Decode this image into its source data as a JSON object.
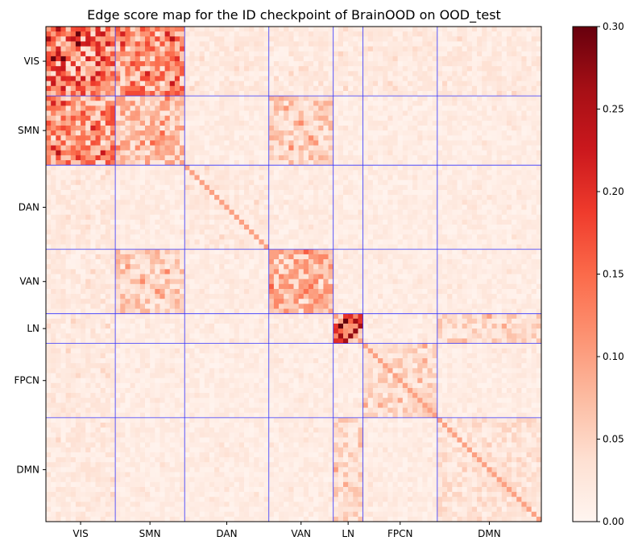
{
  "chart_data": {
    "type": "heatmap",
    "title": "Edge score map for the ID checkpoint of BrainOOD on OOD_test",
    "n_rois": 100,
    "networks": [
      {
        "name": "VIS",
        "start": 0,
        "end": 14
      },
      {
        "name": "SMN",
        "start": 14,
        "end": 28
      },
      {
        "name": "DAN",
        "start": 28,
        "end": 45
      },
      {
        "name": "VAN",
        "start": 45,
        "end": 58
      },
      {
        "name": "LN",
        "start": 58,
        "end": 64
      },
      {
        "name": "FPCN",
        "start": 64,
        "end": 79
      },
      {
        "name": "DMN",
        "start": 79,
        "end": 100
      }
    ],
    "value_range": [
      0.0,
      0.3
    ],
    "colormap": "Reds",
    "colorbar_ticks": [
      "0.00",
      "0.05",
      "0.10",
      "0.15",
      "0.20",
      "0.25",
      "0.30"
    ],
    "boundary_line_color": "#3333ff",
    "block_mean_scores": {
      "VIS-VIS": 0.13,
      "VIS-SMN": 0.1,
      "VIS-others": 0.02,
      "SMN-SMN": 0.06,
      "SMN-VAN": 0.05,
      "DAN-DAN": 0.02,
      "VAN-VAN": 0.07,
      "LN-LN": 0.16,
      "FPCN-FPCN": 0.04,
      "DMN-DMN": 0.03,
      "DMN-LN": 0.04,
      "diagonal": 0.1,
      "background": 0.015
    }
  }
}
